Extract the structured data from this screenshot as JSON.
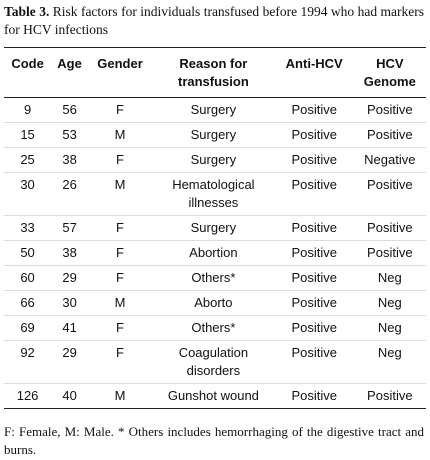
{
  "caption": {
    "label": "Table 3.",
    "text": "Risk factors for individuals transfused before 1994 who had markers for HCV infections"
  },
  "table": {
    "columns": [
      [
        "Code"
      ],
      [
        "Age"
      ],
      [
        "Gender"
      ],
      [
        "Reason for",
        "transfusion"
      ],
      [
        "Anti-HCV"
      ],
      [
        "HCV",
        "Genome"
      ]
    ],
    "rows": [
      [
        9,
        56,
        "F",
        [
          "Surgery"
        ],
        "Positive",
        "Positive"
      ],
      [
        15,
        53,
        "M",
        [
          "Surgery"
        ],
        "Positive",
        "Positive"
      ],
      [
        25,
        38,
        "F",
        [
          "Surgery"
        ],
        "Positive",
        "Negative"
      ],
      [
        30,
        26,
        "M",
        [
          "Hematological",
          "illnesses"
        ],
        "Positive",
        "Positive"
      ],
      [
        33,
        57,
        "F",
        [
          "Surgery"
        ],
        "Positive",
        "Positive"
      ],
      [
        50,
        38,
        "F",
        [
          "Abortion"
        ],
        "Positive",
        "Positive"
      ],
      [
        60,
        29,
        "F",
        [
          "Others*"
        ],
        "Positive",
        "Neg"
      ],
      [
        66,
        30,
        "M",
        [
          "Aborto"
        ],
        "Positive",
        "Neg"
      ],
      [
        69,
        41,
        "F",
        [
          "Others*"
        ],
        "Positive",
        "Neg"
      ],
      [
        92,
        29,
        "F",
        [
          "Coagulation",
          "disorders"
        ],
        "Positive",
        "Neg"
      ],
      [
        126,
        40,
        "M",
        [
          "Gunshot wound"
        ],
        "Positive",
        "Positive"
      ]
    ]
  },
  "footnote": "F: Female, M: Male. * Others includes hemorrhaging of the digestive tract and burns."
}
